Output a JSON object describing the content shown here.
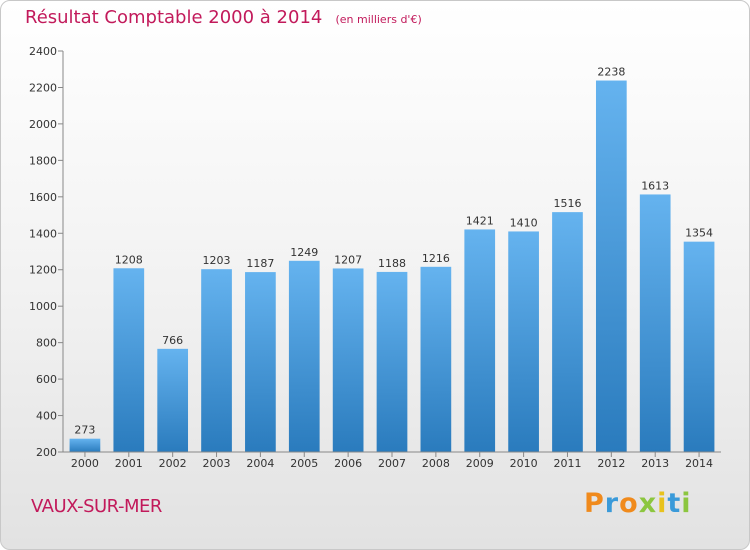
{
  "title": "Résultat Comptable 2000 à 2014",
  "unit": "(en milliers d'€)",
  "place": "VAUX-SUR-MER",
  "brand": "Proxiti",
  "colors": {
    "title": "#c21a5b",
    "bar_top": "#65b3ef",
    "bar_bottom": "#2a7bbd",
    "axis": "#888888"
  },
  "chart_data": {
    "type": "bar",
    "title": "Résultat Comptable 2000 à 2014",
    "xlabel": "",
    "ylabel": "",
    "categories": [
      "2000",
      "2001",
      "2002",
      "2003",
      "2004",
      "2005",
      "2006",
      "2007",
      "2008",
      "2009",
      "2010",
      "2011",
      "2012",
      "2013",
      "2014"
    ],
    "values": [
      273,
      1208,
      766,
      1203,
      1187,
      1249,
      1207,
      1188,
      1216,
      1421,
      1410,
      1516,
      2238,
      1613,
      1354
    ],
    "ylim": [
      200,
      2400
    ],
    "yticks": [
      200,
      400,
      600,
      800,
      1000,
      1200,
      1400,
      1600,
      1800,
      2000,
      2200,
      2400
    ],
    "grid": false,
    "legend": "none"
  }
}
